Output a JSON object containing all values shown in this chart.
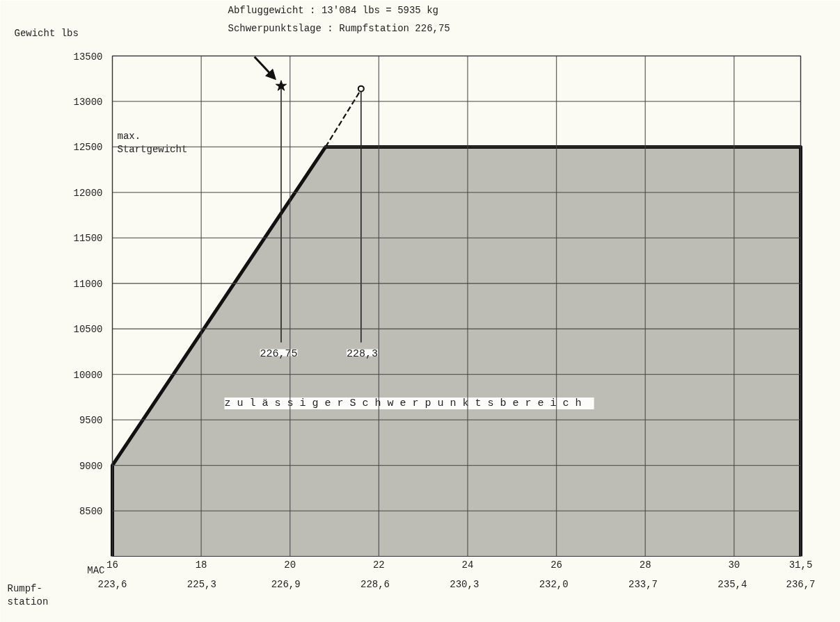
{
  "chart_data": {
    "type": "area",
    "ylabel": "Gewicht lbs",
    "xlabel": "MAC",
    "x2label": "Rumpf-\nstation",
    "xlim": [
      16,
      31.5
    ],
    "xticks": [
      16,
      18,
      20,
      22,
      24,
      26,
      28,
      30,
      {
        "value": 31.5,
        "label": "31,5"
      }
    ],
    "x2lim": [
      223.6,
      236.7
    ],
    "x2ticks": [
      {
        "value": 223.6,
        "label": "223,6"
      },
      {
        "value": 225.3,
        "label": "225,3"
      },
      {
        "value": 226.9,
        "label": "226,9"
      },
      {
        "value": 228.6,
        "label": "228,6"
      },
      {
        "value": 230.3,
        "label": "230,3"
      },
      {
        "value": 232.0,
        "label": "232,0"
      },
      {
        "value": 233.7,
        "label": "233,7"
      },
      {
        "value": 235.4,
        "label": "235,4"
      },
      {
        "value": 236.7,
        "label": "236,7"
      }
    ],
    "ylim": [
      8000,
      13500
    ],
    "yticks": [
      8500,
      9000,
      9500,
      10000,
      10500,
      11000,
      11500,
      12000,
      12500,
      13000,
      13500
    ],
    "grid": true,
    "series": [
      {
        "color": "#bdbdb6",
        "x": [
          16,
          20.8,
          31.5
        ],
        "values": [
          9000,
          12500,
          12500
        ]
      },
      {
        "type": "line",
        "color": "#111111",
        "line_style": "dashed",
        "x": [
          20.8,
          21.6
        ],
        "values": [
          12500,
          13130
        ]
      },
      {
        "type": "line",
        "color": "#222222",
        "x": [
          19.8,
          19.8
        ],
        "values": [
          13170,
          10350
        ]
      },
      {
        "type": "line",
        "color": "#222222",
        "x": [
          21.6,
          21.6
        ],
        "values": [
          13140,
          10350
        ]
      },
      {
        "type": "scatter",
        "marker": "star",
        "color": "#111111",
        "x": [
          19.8
        ],
        "values": [
          13170
        ]
      },
      {
        "type": "scatter",
        "marker": "circle",
        "color": "#111111",
        "x": [
          21.6
        ],
        "values": [
          13140
        ]
      }
    ],
    "annotations": [
      "Abfluggewicht :  13'084 lbs = 5935 kg",
      "Schwerpunktslage :  Rumpfstation 226,75",
      "max.\nStartgewicht",
      "z u l ä s s i g e r   S c h w e r p u n k t s b e r e i c h",
      "226,75",
      "228,3"
    ]
  }
}
